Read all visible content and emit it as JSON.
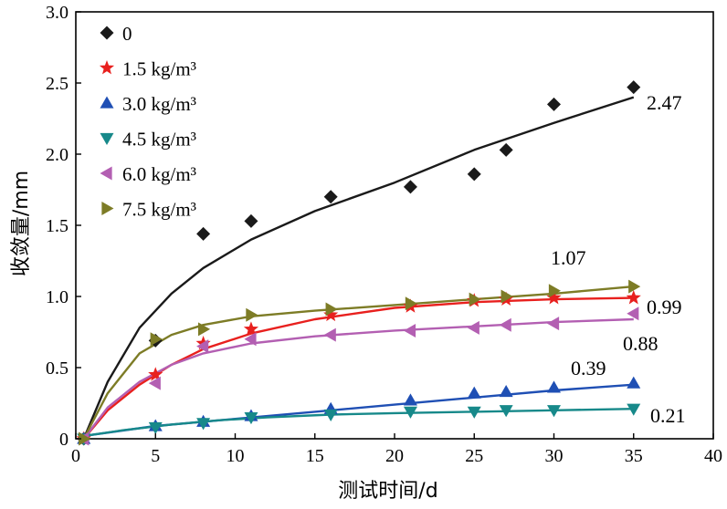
{
  "chart_data": {
    "type": "scatter",
    "xlabel": "测试时间/d",
    "ylabel": "收敛量/mm",
    "xlim": [
      0,
      40
    ],
    "ylim": [
      0,
      3.0
    ],
    "x_ticks": [
      "0",
      "5",
      "10",
      "15",
      "20",
      "25",
      "30",
      "35",
      "40"
    ],
    "y_ticks": [
      "0",
      "0.5",
      "1.0",
      "1.5",
      "2.0",
      "2.5",
      "3.0"
    ],
    "grid": false,
    "legend_position": "top-left",
    "series": [
      {
        "name": "0",
        "marker": "diamond",
        "color": "#1a1a1a",
        "x": [
          0.5,
          5,
          8,
          11,
          16,
          21,
          25,
          27,
          30,
          35
        ],
        "y": [
          0.0,
          0.69,
          1.44,
          1.53,
          1.7,
          1.77,
          1.86,
          2.03,
          2.35,
          2.47
        ],
        "fit": [
          [
            0.5,
            0.0
          ],
          [
            2,
            0.4
          ],
          [
            4,
            0.78
          ],
          [
            6,
            1.02
          ],
          [
            8,
            1.2
          ],
          [
            11,
            1.4
          ],
          [
            15,
            1.6
          ],
          [
            20,
            1.8
          ],
          [
            25,
            2.03
          ],
          [
            30,
            2.22
          ],
          [
            35,
            2.4
          ]
        ],
        "end_label": "2.47"
      },
      {
        "name": "1.5 kg/m³",
        "marker": "star",
        "color": "#e8201e",
        "x": [
          0.5,
          5,
          8,
          11,
          16,
          21,
          25,
          27,
          30,
          35
        ],
        "y": [
          0.0,
          0.45,
          0.67,
          0.77,
          0.87,
          0.93,
          0.97,
          0.98,
          0.99,
          0.99
        ],
        "fit": [
          [
            0.5,
            0.0
          ],
          [
            2,
            0.2
          ],
          [
            4,
            0.38
          ],
          [
            6,
            0.52
          ],
          [
            8,
            0.63
          ],
          [
            11,
            0.74
          ],
          [
            15,
            0.84
          ],
          [
            20,
            0.92
          ],
          [
            25,
            0.96
          ],
          [
            30,
            0.98
          ],
          [
            35,
            0.99
          ]
        ],
        "end_label": "0.99"
      },
      {
        "name": "3.0 kg/m³",
        "marker": "triangle-up",
        "color": "#1f4fb4",
        "x": [
          0.5,
          5,
          8,
          11,
          16,
          21,
          25,
          27,
          30,
          35
        ],
        "y": [
          0.0,
          0.09,
          0.12,
          0.16,
          0.21,
          0.27,
          0.32,
          0.33,
          0.36,
          0.39
        ],
        "fit": [
          [
            0.5,
            0.02
          ],
          [
            5,
            0.09
          ],
          [
            10,
            0.14
          ],
          [
            15,
            0.19
          ],
          [
            20,
            0.24
          ],
          [
            25,
            0.29
          ],
          [
            30,
            0.34
          ],
          [
            35,
            0.38
          ]
        ],
        "end_label": "0.39"
      },
      {
        "name": "4.5 kg/m³",
        "marker": "triangle-down",
        "color": "#17898a",
        "x": [
          0.5,
          5,
          8,
          11,
          16,
          21,
          25,
          27,
          30,
          35
        ],
        "y": [
          0.0,
          0.08,
          0.11,
          0.15,
          0.17,
          0.19,
          0.19,
          0.2,
          0.2,
          0.21
        ],
        "fit": [
          [
            0.5,
            0.02
          ],
          [
            3,
            0.06
          ],
          [
            6,
            0.1
          ],
          [
            9,
            0.13
          ],
          [
            12,
            0.15
          ],
          [
            16,
            0.17
          ],
          [
            20,
            0.18
          ],
          [
            25,
            0.19
          ],
          [
            30,
            0.2
          ],
          [
            35,
            0.21
          ]
        ],
        "end_label": "0.21"
      },
      {
        "name": "6.0 kg/m³",
        "marker": "triangle-left",
        "color": "#b35fb2",
        "x": [
          0.5,
          5,
          8,
          11,
          16,
          21,
          25,
          27,
          30,
          35
        ],
        "y": [
          0.0,
          0.39,
          0.65,
          0.7,
          0.73,
          0.76,
          0.78,
          0.8,
          0.81,
          0.88
        ],
        "fit": [
          [
            0.5,
            0.0
          ],
          [
            2,
            0.22
          ],
          [
            4,
            0.4
          ],
          [
            6,
            0.52
          ],
          [
            8,
            0.6
          ],
          [
            11,
            0.67
          ],
          [
            15,
            0.72
          ],
          [
            20,
            0.76
          ],
          [
            25,
            0.79
          ],
          [
            30,
            0.82
          ],
          [
            35,
            0.84
          ]
        ],
        "end_label": "0.88"
      },
      {
        "name": "7.5 kg/m³",
        "marker": "triangle-right",
        "color": "#7d7c26",
        "x": [
          0.5,
          5,
          8,
          11,
          16,
          21,
          25,
          27,
          30,
          35
        ],
        "y": [
          0.0,
          0.7,
          0.77,
          0.87,
          0.91,
          0.95,
          0.98,
          1.0,
          1.04,
          1.07
        ],
        "fit": [
          [
            0.5,
            0.0
          ],
          [
            2,
            0.32
          ],
          [
            4,
            0.6
          ],
          [
            6,
            0.73
          ],
          [
            8,
            0.8
          ],
          [
            11,
            0.86
          ],
          [
            15,
            0.9
          ],
          [
            20,
            0.94
          ],
          [
            25,
            0.98
          ],
          [
            30,
            1.02
          ],
          [
            35,
            1.07
          ]
        ],
        "end_label": "1.07"
      }
    ]
  }
}
